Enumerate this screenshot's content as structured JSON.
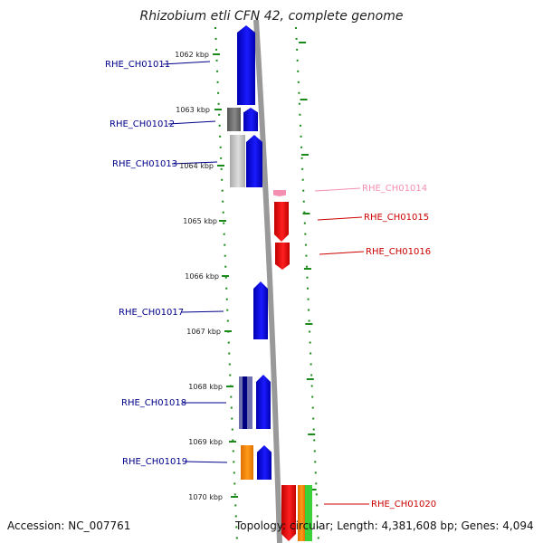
{
  "title": "Rhizobium etli CFN 42, complete genome",
  "accession": "Accession: NC_007761",
  "topology": "Topology: circular; Length: 4,381,608 bp; Genes: 4,094",
  "ticks": [
    "1062 kbp",
    "1063 kbp",
    "1064 kbp",
    "1065 kbp",
    "1066 kbp",
    "1067 kbp",
    "1068 kbp",
    "1069 kbp",
    "1070 kbp"
  ],
  "genes": [
    {
      "id": "RHE_CH01011",
      "color": "#00008b",
      "strand": "forward"
    },
    {
      "id": "RHE_CH01012",
      "color": "#00008b",
      "strand": "forward"
    },
    {
      "id": "RHE_CH01013",
      "color": "#00008b",
      "strand": "forward"
    },
    {
      "id": "RHE_CH01014",
      "color": "#f48fb1",
      "strand": "reverse"
    },
    {
      "id": "RHE_CH01015",
      "color": "#cc0000",
      "strand": "reverse"
    },
    {
      "id": "RHE_CH01016",
      "color": "#cc0000",
      "strand": "reverse"
    },
    {
      "id": "RHE_CH01017",
      "color": "#00008b",
      "strand": "forward"
    },
    {
      "id": "RHE_CH01018",
      "color": "#00008b",
      "strand": "forward"
    },
    {
      "id": "RHE_CH01019",
      "color": "#00008b",
      "strand": "forward"
    },
    {
      "id": "RHE_CH01020",
      "color": "#cc0000",
      "strand": "reverse"
    }
  ],
  "colors": {
    "forward": "#0000ee",
    "reverse": "#ee0000",
    "backbone": "#999999",
    "tick": "#1a8a1a"
  }
}
